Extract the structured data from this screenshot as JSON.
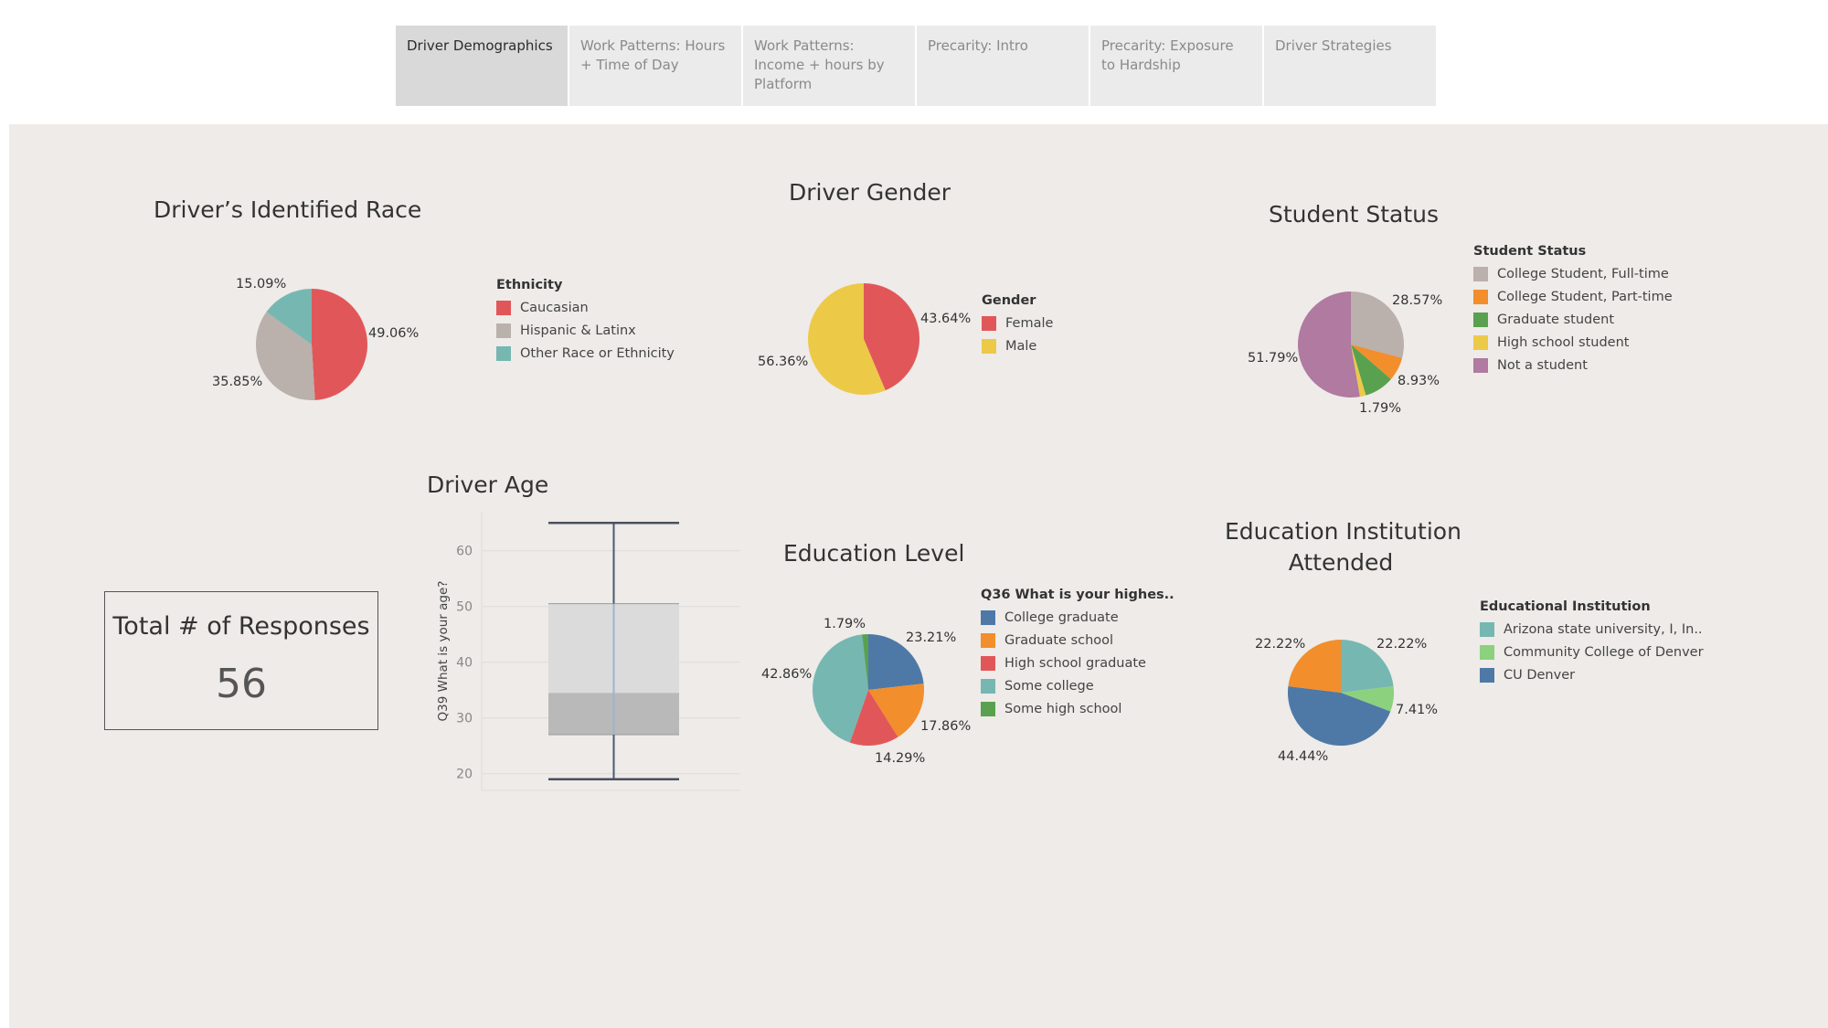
{
  "tabs": [
    {
      "label": "Driver Demographics",
      "active": true
    },
    {
      "label": "Work Patterns: Hours + Time of Day",
      "active": false
    },
    {
      "label": "Work Patterns: Income + hours by Platform",
      "active": false
    },
    {
      "label": "Precarity: Intro",
      "active": false
    },
    {
      "label": "Precarity: Exposure to Hardship",
      "active": false
    },
    {
      "label": "Driver Strategies",
      "active": false
    }
  ],
  "kpi": {
    "title": "Total # of Responses",
    "value": "56"
  },
  "chart_data": [
    {
      "id": "race",
      "type": "pie",
      "title": "Driver’s Identified Race",
      "legend_title": "Ethnicity",
      "slices": [
        {
          "label": "Caucasian",
          "value": 49.06,
          "display": "49.06%",
          "color": "#e15759"
        },
        {
          "label": "Hispanic & Latinx",
          "value": 35.85,
          "display": "35.85%",
          "color": "#bab0ac"
        },
        {
          "label": "Other Race or Ethnicity",
          "value": 15.09,
          "display": "15.09%",
          "color": "#76b7b2"
        }
      ]
    },
    {
      "id": "gender",
      "type": "pie",
      "title": "Driver Gender",
      "legend_title": "Gender",
      "slices": [
        {
          "label": "Female",
          "value": 43.64,
          "display": "43.64%",
          "color": "#e15759"
        },
        {
          "label": "Male",
          "value": 56.36,
          "display": "56.36%",
          "color": "#edc948"
        }
      ]
    },
    {
      "id": "student",
      "type": "pie",
      "title": "Student Status",
      "legend_title": "Student Status",
      "slices": [
        {
          "label": "College Student, Full-time",
          "value": 28.57,
          "display": "28.57%",
          "color": "#bab0ac"
        },
        {
          "label": "College Student, Part-time",
          "value": 7.14,
          "display": "",
          "color": "#f28e2b"
        },
        {
          "label": "Graduate student",
          "value": 8.93,
          "display": "8.93%",
          "color": "#59a14f"
        },
        {
          "label": "High school student",
          "value": 1.79,
          "display": "1.79%",
          "color": "#edc948"
        },
        {
          "label": "Not a student",
          "value": 51.79,
          "display": "51.79%",
          "color": "#b07aa1"
        }
      ]
    },
    {
      "id": "education",
      "type": "pie",
      "title": "Education Level",
      "legend_title": "Q36 What is your highes..",
      "slices": [
        {
          "label": "College graduate",
          "value": 23.21,
          "display": "23.21%",
          "color": "#4e79a7"
        },
        {
          "label": "Graduate school",
          "value": 17.86,
          "display": "17.86%",
          "color": "#f28e2b"
        },
        {
          "label": "High school graduate",
          "value": 14.29,
          "display": "14.29%",
          "color": "#e15759"
        },
        {
          "label": "Some college",
          "value": 42.86,
          "display": "42.86%",
          "color": "#76b7b2"
        },
        {
          "label": "Some high school",
          "value": 1.79,
          "display": "1.79%",
          "color": "#59a14f"
        }
      ]
    },
    {
      "id": "institution",
      "type": "pie",
      "title_lines": [
        "Education Institution",
        "Attended"
      ],
      "legend_title": "Educational Institution",
      "slices": [
        {
          "label": "Arizona state university, I, In..",
          "value": 22.22,
          "display": "22.22%",
          "color": "#76b7b2"
        },
        {
          "label": "Community College of Denver",
          "value": 7.41,
          "display": "7.41%",
          "color": "#8cd17d"
        },
        {
          "label": "CU Denver",
          "value": 44.44,
          "display": "44.44%",
          "color": "#4e79a7"
        },
        {
          "label": "",
          "value": 22.22,
          "display": "22.22%",
          "color": "#f28e2b"
        }
      ]
    },
    {
      "id": "age",
      "type": "boxplot",
      "title": "Driver Age",
      "ylabel": "Q39 What is your age?",
      "ylim": [
        17,
        67
      ],
      "yticks": [
        20,
        30,
        40,
        50,
        60
      ],
      "whisker_low": 19,
      "q1": 27,
      "median": 34.5,
      "q3": 50.5,
      "whisker_high": 65
    }
  ]
}
